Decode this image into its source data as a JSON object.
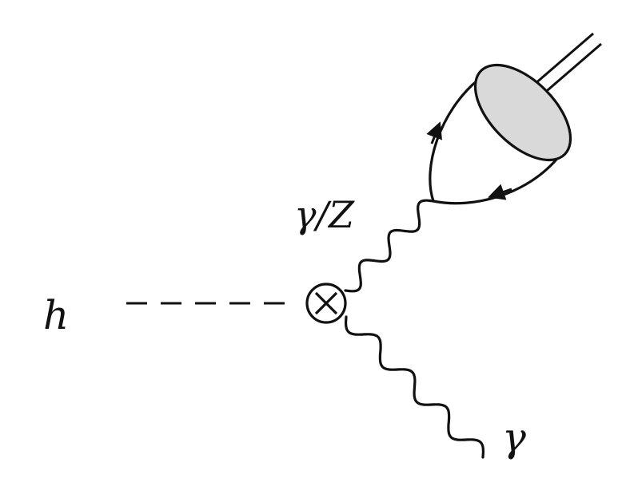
{
  "labels": {
    "higgs": "h",
    "boson_mixed": "γ/Z",
    "photon": "γ"
  },
  "colors": {
    "line": "#111111",
    "blob_fill": "#d9d9d9",
    "background": "#ffffff"
  }
}
